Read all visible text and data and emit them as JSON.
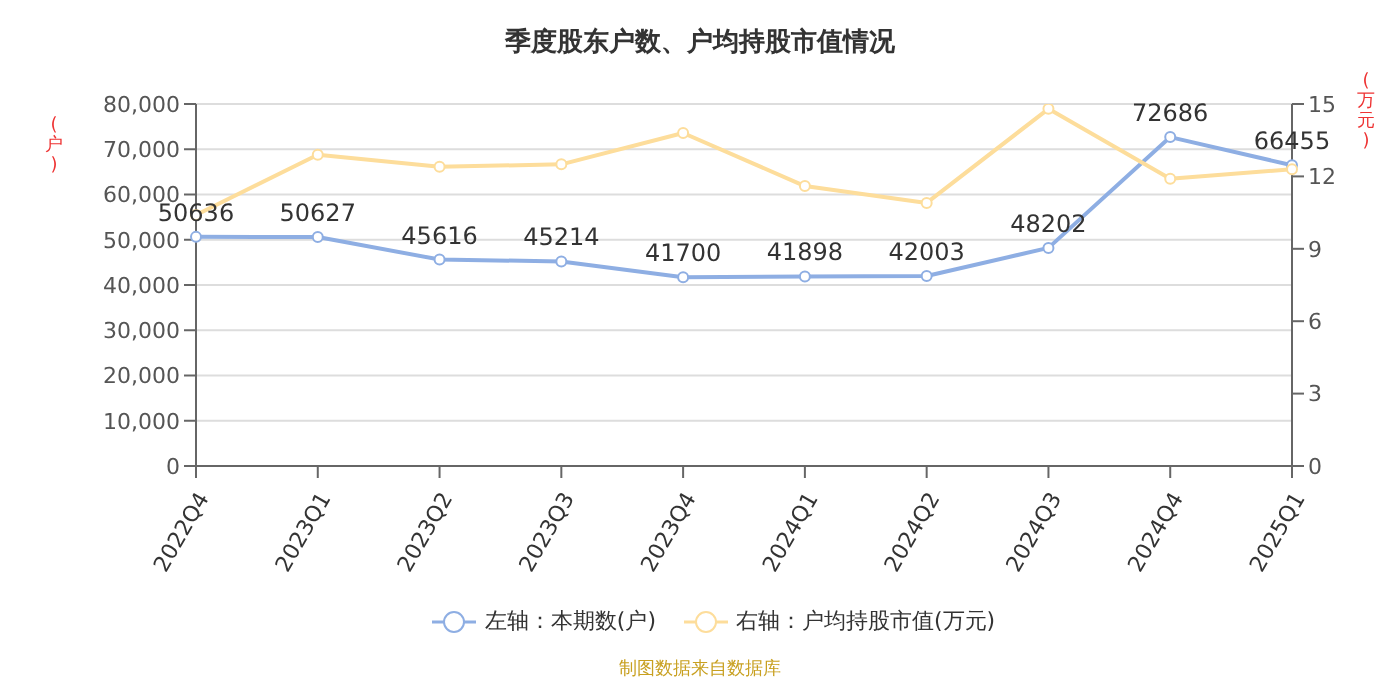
{
  "chart_data": {
    "type": "line",
    "title": "季度股东户数、户均持股市值情况",
    "ylabel": "(户)",
    "y2label": "(万元)",
    "categories": [
      "2022Q4",
      "2023Q1",
      "2023Q2",
      "2023Q3",
      "2023Q4",
      "2024Q1",
      "2024Q2",
      "2024Q3",
      "2024Q4",
      "2025Q1"
    ],
    "series": [
      {
        "name": "左轴：本期数(户)",
        "color": "#8eaee3",
        "values": [
          50636,
          50627,
          45616,
          45214,
          41700,
          41898,
          42003,
          48202,
          72686,
          66455
        ],
        "value_labels": [
          "50636",
          "50627",
          "45616",
          "45214",
          "41700",
          "41898",
          "42003",
          "48202",
          "72686",
          "66455"
        ]
      },
      {
        "name": "右轴：户均持股市值(万元)",
        "color": "#fddd9b",
        "axis": "y2",
        "values": [
          10.4,
          12.9,
          12.4,
          12.5,
          13.8,
          11.6,
          10.9,
          14.8,
          11.9,
          12.3
        ]
      }
    ],
    "ylim": [
      0,
      80000
    ],
    "yticks": [
      {
        "value": 0,
        "label": "0"
      },
      {
        "value": 10000,
        "label": "10,000"
      },
      {
        "value": 20000,
        "label": "20,000"
      },
      {
        "value": 30000,
        "label": "30,000"
      },
      {
        "value": 40000,
        "label": "40,000"
      },
      {
        "value": 50000,
        "label": "50,000"
      },
      {
        "value": 60000,
        "label": "60,000"
      },
      {
        "value": 70000,
        "label": "70,000"
      },
      {
        "value": 80000,
        "label": "80,000"
      }
    ],
    "y2lim": [
      0,
      15
    ],
    "y2ticks": [
      0,
      3,
      6,
      9,
      12,
      15
    ],
    "grid": "y",
    "legend": "bottom",
    "marker": "circle",
    "line_style": "solid",
    "annotations": [
      "制图数据来自数据库"
    ]
  }
}
